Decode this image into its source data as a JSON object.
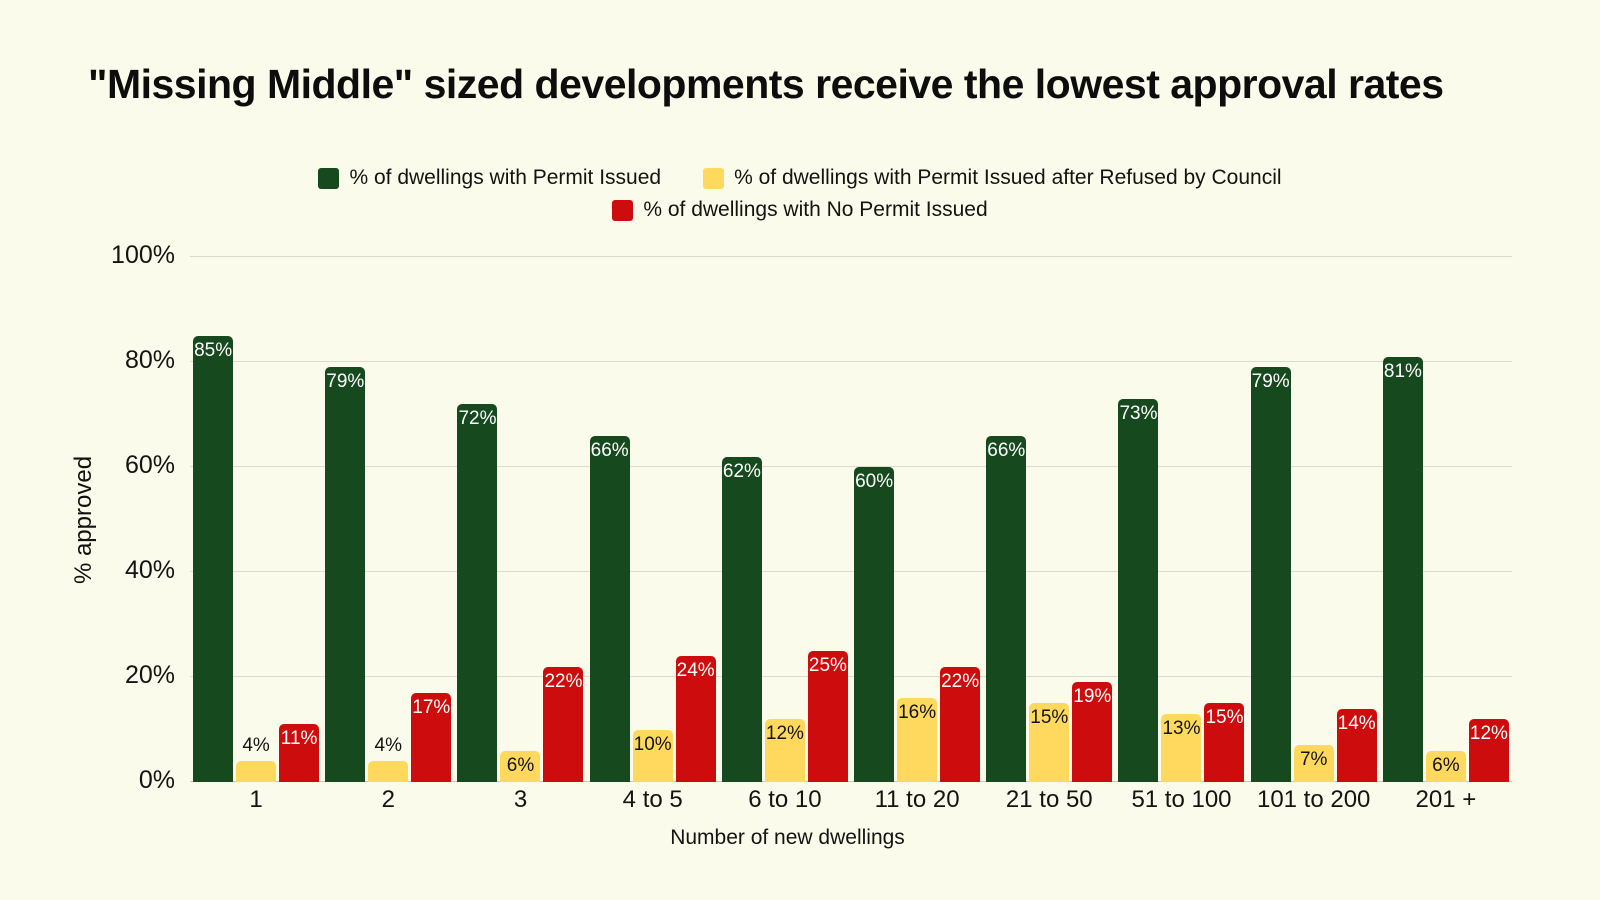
{
  "page": {
    "background": "#fbfbeb"
  },
  "chart_data": {
    "type": "bar",
    "title": "\"Missing Middle\" sized developments receive the lowest approval rates",
    "xlabel": "Number of new dwellings",
    "ylabel": "% approved",
    "ylim": [
      0,
      100
    ],
    "grid": true,
    "legend_position": "top",
    "categories": [
      "1",
      "2",
      "3",
      "4 to 5",
      "6 to 10",
      "11 to 20",
      "21 to 50",
      "51 to 100",
      "101 to 200",
      "201 +"
    ],
    "series": [
      {
        "key": "permit-issued",
        "name": "% of dwellings with Permit Issued",
        "color": "#17491f",
        "label_color": "#ffffff",
        "values": [
          85,
          79,
          72,
          66,
          62,
          60,
          66,
          73,
          79,
          81
        ]
      },
      {
        "key": "permit-issued-after-refusal",
        "name": "% of dwellings with Permit Issued after Refused by Council",
        "color": "#fed95e",
        "label_color": "#131313",
        "values": [
          4,
          4,
          6,
          10,
          12,
          16,
          15,
          13,
          7,
          6
        ]
      },
      {
        "key": "no-permit-issued",
        "name": "% of dwellings with No Permit Issued",
        "color": "#cd0d0d",
        "label_color": "#ffffff",
        "values": [
          11,
          17,
          22,
          24,
          25,
          22,
          19,
          15,
          14,
          12
        ]
      }
    ],
    "yticks": [
      {
        "value": 0,
        "label": "0%"
      },
      {
        "value": 20,
        "label": "20%"
      },
      {
        "value": 40,
        "label": "40%"
      },
      {
        "value": 60,
        "label": "60%"
      },
      {
        "value": 80,
        "label": "80%"
      },
      {
        "value": 100,
        "label": "100%"
      }
    ],
    "value_label_suffix": "%"
  }
}
